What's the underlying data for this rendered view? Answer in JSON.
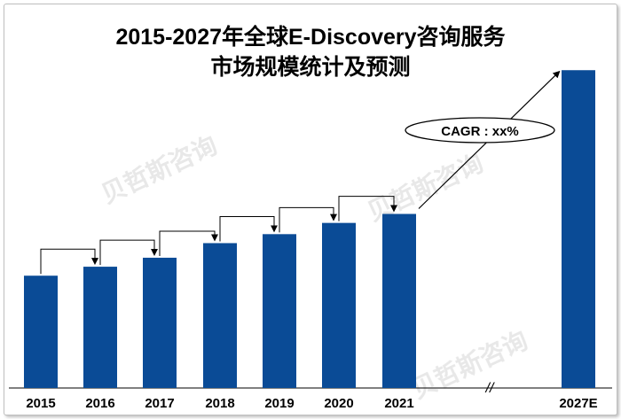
{
  "chart_data": {
    "type": "bar",
    "title": "2015-2027年全球E-Discovery咨询服务",
    "subtitle": "市场规模统计及预测",
    "categories": [
      "2015",
      "2016",
      "2017",
      "2018",
      "2019",
      "2020",
      "2021",
      "2027E"
    ],
    "values": [
      1.0,
      1.08,
      1.16,
      1.29,
      1.37,
      1.47,
      1.55,
      2.83
    ],
    "xlabel": "",
    "ylabel": "",
    "ylim": [
      0,
      3.1
    ],
    "axis_break": "//",
    "annotation": "CAGR : xx%",
    "grid": false,
    "legend": "none",
    "bar_color": "#0a4b96",
    "watermark": "贝哲斯咨询"
  }
}
